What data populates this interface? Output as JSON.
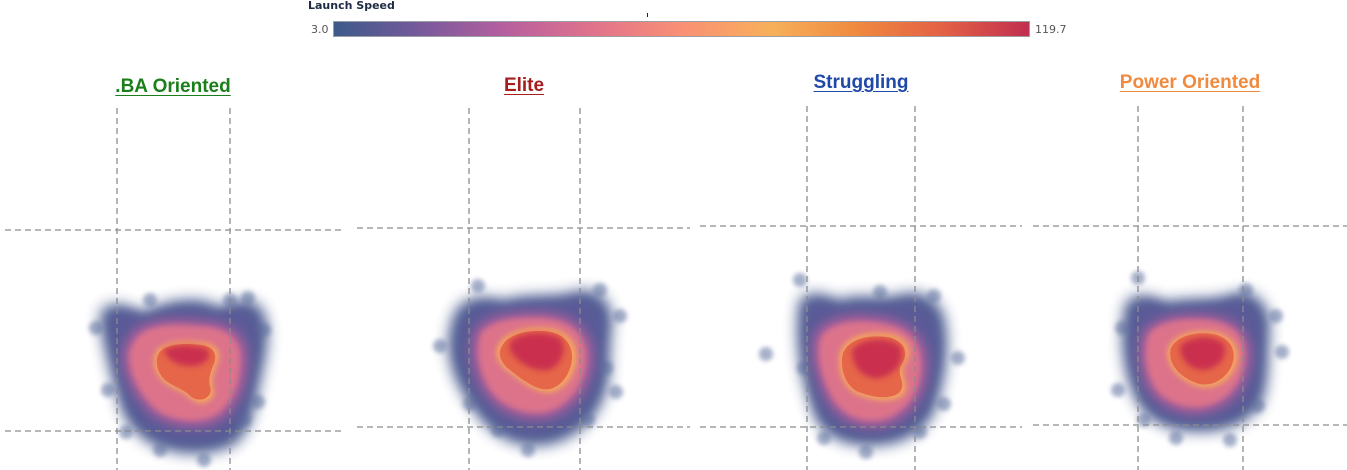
{
  "legend": {
    "title": "Launch Speed",
    "min_label": "3.0",
    "max_label": "119.7",
    "gradient_colors": [
      "#3c5a8a",
      "#7a5a9c",
      "#b85f9e",
      "#e2748a",
      "#f99075",
      "#f7b05a",
      "#f08a3f",
      "#e25f45",
      "#c12e4f"
    ]
  },
  "chart_data": {
    "type": "heatmap",
    "metric": "Launch Speed",
    "color_range": [
      3.0,
      119.7
    ],
    "panels": [
      {
        "title": ".BA Oriented",
        "title_color": "#1a7f1a"
      },
      {
        "title": "Elite",
        "title_color": "#a51d1d"
      },
      {
        "title": "Struggling",
        "title_color": "#1f49a8"
      },
      {
        "title": "Power Oriented",
        "title_color": "#f08a3f"
      }
    ]
  }
}
